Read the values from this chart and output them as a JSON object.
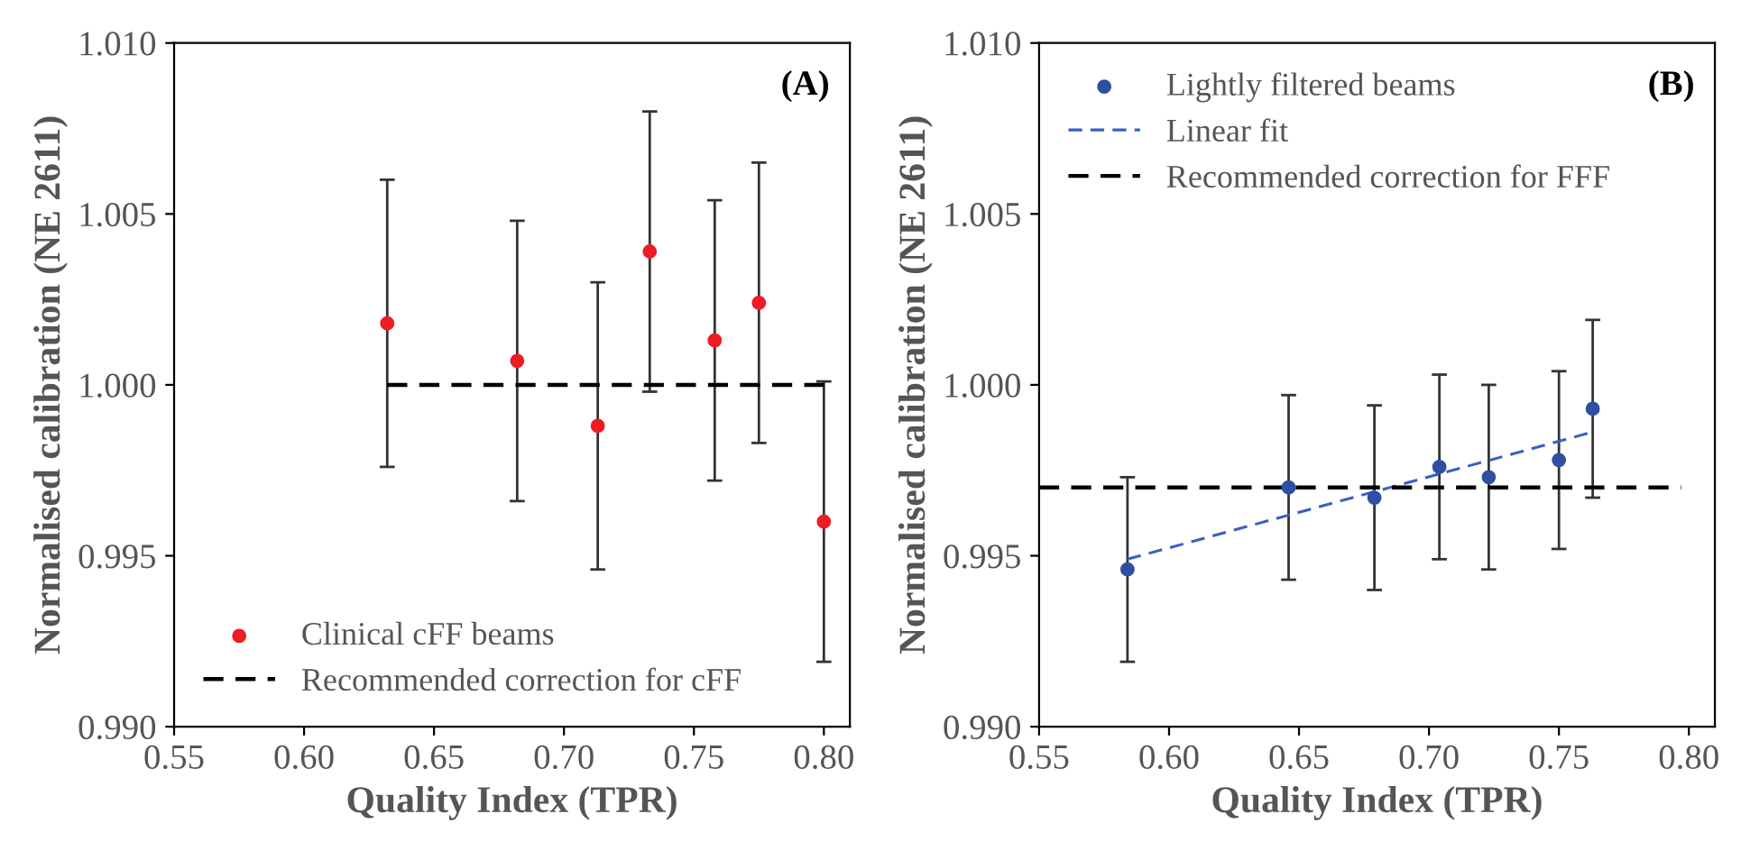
{
  "chart_data": [
    {
      "type": "scatter",
      "title": "(A)",
      "xlabel": "Quality Index (TPR)",
      "ylabel": "Normalised calibration (NE 2611)",
      "xlim": [
        0.55,
        0.81
      ],
      "xticks": [
        {
          "value": 0.55,
          "label": "0.55"
        },
        {
          "value": 0.6,
          "label": "0.60"
        },
        {
          "value": 0.65,
          "label": "0.65"
        },
        {
          "value": 0.7,
          "label": "0.70"
        },
        {
          "value": 0.75,
          "label": "0.75"
        },
        {
          "value": 0.8,
          "label": "0.80"
        }
      ],
      "ylim": [
        0.99,
        1.01
      ],
      "yticks": [
        {
          "value": 0.99,
          "label": "0.990"
        },
        {
          "value": 0.995,
          "label": "0.995"
        },
        {
          "value": 1.0,
          "label": "1.000"
        },
        {
          "value": 1.005,
          "label": "1.005"
        },
        {
          "value": 1.01,
          "label": "1.010"
        }
      ],
      "grid": false,
      "legend": "bottom left",
      "series": [
        {
          "name": "Clinical cFF beams",
          "color": "#ee1c25",
          "marker": "circle",
          "x": [
            0.632,
            0.682,
            0.713,
            0.733,
            0.758,
            0.775,
            0.8
          ],
          "values": [
            1.0018,
            1.0007,
            0.9988,
            1.0039,
            1.0013,
            1.0024,
            0.996
          ],
          "errors": [
            0.0042,
            0.0041,
            0.0042,
            0.0041,
            0.0041,
            0.0041,
            0.0041
          ]
        },
        {
          "name": "Recommended correction for cFF",
          "type": "line",
          "color": "#000000",
          "line_style": "dashed",
          "x": [
            0.632,
            0.8
          ],
          "values": [
            1.0,
            1.0
          ]
        }
      ]
    },
    {
      "type": "scatter",
      "title": "(B)",
      "xlabel": "Quality Index (TPR)",
      "ylabel": "Normalised calibration (NE 2611)",
      "xlim": [
        0.55,
        0.81
      ],
      "xticks": [
        {
          "value": 0.55,
          "label": "0.55"
        },
        {
          "value": 0.6,
          "label": "0.60"
        },
        {
          "value": 0.65,
          "label": "0.65"
        },
        {
          "value": 0.7,
          "label": "0.70"
        },
        {
          "value": 0.75,
          "label": "0.75"
        },
        {
          "value": 0.8,
          "label": "0.80"
        }
      ],
      "ylim": [
        0.99,
        1.01
      ],
      "yticks": [
        {
          "value": 0.99,
          "label": "0.990"
        },
        {
          "value": 0.995,
          "label": "0.995"
        },
        {
          "value": 1.0,
          "label": "1.000"
        },
        {
          "value": 1.005,
          "label": "1.005"
        },
        {
          "value": 1.01,
          "label": "1.010"
        }
      ],
      "grid": false,
      "legend": "top left",
      "series": [
        {
          "name": "Lightly filtered beams",
          "color": "#2e4fa3",
          "marker": "circle",
          "x": [
            0.584,
            0.646,
            0.679,
            0.704,
            0.723,
            0.75,
            0.763
          ],
          "values": [
            0.9946,
            0.997,
            0.9967,
            0.9976,
            0.9973,
            0.9978,
            0.9993
          ],
          "errors": [
            0.0027,
            0.0027,
            0.0027,
            0.0027,
            0.0027,
            0.0026,
            0.0026
          ]
        },
        {
          "name": "Linear fit",
          "type": "line",
          "color": "#3a5fc0",
          "line_style": "dashed",
          "x": [
            0.584,
            0.762
          ],
          "values": [
            0.9949,
            0.9986
          ]
        },
        {
          "name": "Recommended correction for FFF",
          "type": "line",
          "color": "#000000",
          "line_style": "dashed",
          "x": [
            0.55,
            0.797
          ],
          "values": [
            0.997,
            0.997
          ]
        }
      ]
    }
  ]
}
